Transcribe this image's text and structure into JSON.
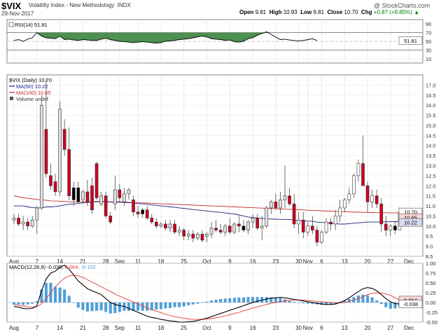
{
  "header": {
    "symbol": "$VIX",
    "name": "Volatility Index - New Methodology",
    "exchange": "INDX",
    "date": "29-Nov-2017",
    "watermark": "@ StockCharts.com",
    "open_label": "Open",
    "open": "9.81",
    "high_label": "High",
    "high": "10.93",
    "low_label": "Low",
    "low": "9.81",
    "close_label": "Close",
    "close": "10.70",
    "chg_label": "Chg",
    "chg": "+0.87 (+8.85%)",
    "chg_arrow": "▲"
  },
  "colors": {
    "up": "#e8e8e8",
    "down": "#cc0022",
    "ma50": "#1a237e",
    "ma100": "#c62828",
    "macd": "#000000",
    "signal": "#e53935",
    "hist": "#4f9fd6",
    "rsi": "#000000",
    "rsi_fill": "#2e7d32"
  },
  "chart_data": [
    {
      "type": "line",
      "panel": "rsi",
      "legend": "RSI(14) 51.81",
      "ylim": [
        0,
        100
      ],
      "yticks": [
        "90",
        "70",
        "50",
        "30",
        "10"
      ],
      "current_label": "51.81",
      "levels": [
        70,
        30
      ],
      "values": [
        52,
        54,
        50,
        55,
        58,
        70,
        62,
        58,
        57,
        56,
        62,
        54,
        55,
        53,
        52,
        54,
        53,
        52,
        52,
        55,
        57,
        54,
        52,
        50,
        49,
        48,
        47,
        48,
        49,
        48,
        47,
        46,
        47,
        50,
        51,
        52,
        54,
        55,
        56,
        58,
        60,
        62,
        60,
        56,
        55,
        54,
        52,
        53,
        49,
        48,
        50,
        56,
        58,
        64,
        68,
        72,
        66,
        60,
        54,
        55,
        53,
        52,
        51,
        52,
        54,
        56,
        51.81
      ]
    },
    {
      "type": "candlestick",
      "panel": "price",
      "title": "$VIX (Daily) 10.70",
      "legend": [
        "MA(50) 10.22",
        "MA(100) 10.65",
        "Volume undef"
      ],
      "ylim": [
        8.5,
        17.5
      ],
      "yticks": [
        "17.0",
        "16.5",
        "16.0",
        "15.5",
        "15.0",
        "14.5",
        "14.0",
        "13.5",
        "13.0",
        "12.5",
        "12.0",
        "11.5",
        "11.0",
        "10.5",
        "10.0",
        "9.5",
        "9.0",
        "8.5"
      ],
      "xlabels": [
        "Aug",
        "7",
        "14",
        "21",
        "28",
        "Sep",
        "11",
        "18",
        "25",
        "Oct",
        "9",
        "16",
        "23",
        "30",
        "Nov",
        "6",
        "13",
        "20",
        "27",
        "Dec"
      ],
      "xlabel_idx": [
        0,
        5,
        10,
        15,
        20,
        23,
        27,
        32,
        37,
        42,
        47,
        52,
        57,
        62,
        64,
        67,
        72,
        77,
        82,
        86
      ],
      "price_tags": [
        "10.70",
        "10.65",
        "10.22"
      ],
      "candles": [
        [
          10.3,
          10.6,
          10.1,
          10.4
        ],
        [
          10.4,
          10.6,
          10.0,
          10.1
        ],
        [
          10.1,
          10.5,
          9.8,
          10.2
        ],
        [
          10.2,
          10.4,
          9.8,
          10.0
        ],
        [
          10.0,
          10.5,
          9.9,
          10.3
        ],
        [
          10.3,
          11.0,
          9.6,
          10.9
        ],
        [
          10.9,
          16.5,
          10.8,
          16.0
        ],
        [
          14.8,
          17.3,
          12.4,
          12.6
        ],
        [
          12.5,
          13.1,
          11.8,
          12.0
        ],
        [
          12.2,
          12.6,
          11.5,
          11.7
        ],
        [
          11.7,
          16.2,
          11.5,
          15.8
        ],
        [
          14.8,
          15.3,
          13.5,
          13.8
        ],
        [
          13.8,
          14.9,
          11.3,
          11.5
        ],
        [
          11.3,
          12.2,
          11.0,
          11.9
        ],
        [
          11.9,
          12.2,
          11.1,
          11.2
        ],
        [
          11.3,
          11.8,
          11.1,
          11.7
        ],
        [
          11.7,
          12.3,
          11.0,
          11.2
        ],
        [
          12.0,
          12.4,
          10.6,
          10.8
        ],
        [
          13.1,
          13.2,
          11.3,
          11.4
        ],
        [
          11.1,
          11.7,
          11.0,
          11.5
        ],
        [
          11.5,
          11.7,
          10.4,
          10.5
        ],
        [
          10.5,
          10.7,
          10.1,
          10.2
        ],
        [
          11.1,
          12.5,
          10.8,
          11.8
        ],
        [
          11.8,
          12.1,
          11.2,
          11.4
        ],
        [
          11.2,
          11.9,
          11.0,
          11.6
        ],
        [
          11.6,
          11.9,
          11.3,
          11.8
        ],
        [
          11.3,
          11.5,
          10.5,
          10.7
        ],
        [
          10.7,
          11.0,
          10.4,
          10.6
        ],
        [
          10.6,
          10.9,
          10.4,
          10.8
        ],
        [
          10.8,
          11.0,
          10.3,
          10.4
        ],
        [
          10.4,
          10.6,
          10.1,
          10.2
        ],
        [
          10.2,
          10.4,
          9.9,
          10.0
        ],
        [
          10.0,
          10.2,
          9.9,
          10.1
        ],
        [
          10.1,
          10.3,
          9.8,
          9.9
        ],
        [
          9.9,
          10.3,
          9.7,
          10.1
        ],
        [
          10.1,
          10.3,
          9.6,
          9.7
        ],
        [
          9.7,
          10.0,
          9.5,
          9.8
        ],
        [
          9.8,
          9.9,
          9.3,
          9.5
        ],
        [
          9.5,
          9.8,
          9.3,
          9.6
        ],
        [
          9.6,
          9.8,
          9.2,
          9.4
        ],
        [
          9.4,
          9.7,
          9.3,
          9.6
        ],
        [
          9.6,
          9.8,
          9.2,
          9.3
        ],
        [
          9.5,
          9.7,
          9.2,
          9.6
        ],
        [
          9.6,
          10.2,
          9.4,
          9.9
        ],
        [
          9.9,
          10.3,
          9.7,
          9.8
        ],
        [
          9.8,
          10.1,
          9.6,
          9.7
        ],
        [
          9.7,
          10.1,
          9.5,
          10.0
        ],
        [
          10.0,
          10.4,
          9.6,
          9.7
        ],
        [
          9.7,
          10.2,
          9.6,
          10.1
        ],
        [
          10.1,
          10.5,
          9.7,
          10.0
        ],
        [
          10.0,
          10.3,
          9.7,
          9.8
        ],
        [
          9.8,
          10.3,
          9.6,
          10.2
        ],
        [
          10.2,
          10.6,
          9.9,
          10.4
        ],
        [
          10.4,
          10.6,
          9.8,
          9.9
        ],
        [
          9.9,
          10.5,
          9.3,
          10.0
        ],
        [
          10.0,
          11.0,
          9.9,
          10.9
        ],
        [
          10.9,
          11.3,
          10.6,
          11.2
        ],
        [
          11.2,
          11.6,
          10.8,
          10.9
        ],
        [
          10.9,
          11.7,
          10.6,
          11.3
        ],
        [
          11.3,
          13.0,
          10.9,
          11.5
        ],
        [
          11.5,
          11.9,
          11.0,
          11.1
        ],
        [
          11.1,
          11.6,
          9.9,
          10.1
        ],
        [
          10.1,
          10.7,
          9.6,
          10.3
        ],
        [
          10.3,
          10.7,
          9.4,
          9.7
        ],
        [
          9.7,
          10.2,
          9.5,
          10.0
        ],
        [
          10.0,
          10.5,
          9.6,
          9.8
        ],
        [
          9.8,
          10.0,
          9.0,
          9.2
        ],
        [
          9.2,
          9.8,
          9.1,
          9.7
        ],
        [
          9.7,
          10.4,
          9.6,
          10.2
        ],
        [
          10.2,
          10.4,
          9.8,
          10.1
        ],
        [
          10.1,
          10.8,
          9.8,
          10.5
        ],
        [
          10.5,
          11.3,
          10.2,
          10.9
        ],
        [
          10.9,
          11.4,
          10.7,
          11.3
        ],
        [
          11.3,
          11.9,
          11.1,
          11.6
        ],
        [
          11.6,
          12.6,
          11.4,
          12.5
        ],
        [
          12.5,
          13.3,
          12.2,
          13.1
        ],
        [
          13.1,
          14.5,
          12.0,
          12.0
        ],
        [
          12.0,
          12.2,
          10.7,
          11.2
        ],
        [
          11.2,
          11.8,
          10.9,
          11.5
        ],
        [
          11.5,
          11.8,
          10.9,
          11.1
        ],
        [
          11.1,
          11.4,
          9.7,
          10.1
        ],
        [
          10.1,
          10.5,
          9.5,
          9.8
        ],
        [
          9.8,
          10.1,
          9.5,
          10.0
        ],
        [
          10.0,
          10.2,
          9.6,
          9.8
        ],
        [
          9.81,
          10.93,
          9.81,
          10.7
        ]
      ],
      "ma50": [
        11.0,
        11.0,
        11.0,
        10.95,
        10.92,
        10.9,
        10.9,
        10.95,
        10.95,
        10.97,
        11.0,
        11.05,
        11.08,
        11.1,
        11.12,
        11.15,
        11.17,
        11.2,
        11.22,
        11.22,
        11.22,
        11.2,
        11.2,
        11.2,
        11.19,
        11.18,
        11.15,
        11.12,
        11.1,
        11.08,
        11.05,
        11.03,
        11.0,
        10.98,
        10.95,
        10.93,
        10.9,
        10.88,
        10.85,
        10.82,
        10.8,
        10.78,
        10.75,
        10.72,
        10.7,
        10.68,
        10.65,
        10.62,
        10.6,
        10.55,
        10.5,
        10.45,
        10.42,
        10.4,
        10.38,
        10.36,
        10.35,
        10.34,
        10.33,
        10.33,
        10.32,
        10.3,
        10.28,
        10.26,
        10.25,
        10.23,
        10.2,
        10.18,
        10.16,
        10.14,
        10.12,
        10.1,
        10.1,
        10.12,
        10.14,
        10.16,
        10.18,
        10.2,
        10.2,
        10.2,
        10.21,
        10.21,
        10.22,
        10.22,
        10.22
      ],
      "ma100": [
        11.5,
        11.45,
        11.4,
        11.38,
        11.35,
        11.32,
        11.3,
        11.28,
        11.25,
        11.24,
        11.23,
        11.22,
        11.2,
        11.2,
        11.2,
        11.2,
        11.2,
        11.2,
        11.2,
        11.2,
        11.2,
        11.19,
        11.18,
        11.18,
        11.17,
        11.16,
        11.15,
        11.15,
        11.15,
        11.14,
        11.13,
        11.12,
        11.1,
        11.1,
        11.09,
        11.08,
        11.07,
        11.06,
        11.05,
        11.04,
        11.03,
        11.02,
        11.01,
        11.0,
        10.99,
        10.98,
        10.97,
        10.96,
        10.95,
        10.94,
        10.93,
        10.92,
        10.91,
        10.9,
        10.89,
        10.88,
        10.87,
        10.86,
        10.85,
        10.84,
        10.83,
        10.82,
        10.81,
        10.8,
        10.79,
        10.78,
        10.77,
        10.76,
        10.75,
        10.74,
        10.73,
        10.72,
        10.71,
        10.7,
        10.69,
        10.69,
        10.68,
        10.68,
        10.67,
        10.67,
        10.66,
        10.66,
        10.65,
        10.65,
        10.65
      ]
    },
    {
      "type": "line",
      "panel": "macd",
      "legend": [
        "MACD(12,26,9)",
        "-0.038",
        "0.064",
        "-0.102"
      ],
      "ylim": [
        -0.5,
        1.0
      ],
      "yticks": [
        "1.00",
        "0.75",
        "0.50",
        "0.25",
        "0.00",
        "-0.25",
        "-0.50"
      ],
      "price_tags": [
        "0.064",
        "-0.038"
      ],
      "macd": [
        -0.1,
        -0.12,
        -0.15,
        -0.16,
        -0.15,
        -0.08,
        0.3,
        0.6,
        0.75,
        0.8,
        0.9,
        0.95,
        0.85,
        0.7,
        0.55,
        0.45,
        0.35,
        0.3,
        0.25,
        0.2,
        0.1,
        0.0,
        -0.05,
        -0.08,
        -0.1,
        -0.15,
        -0.2,
        -0.25,
        -0.3,
        -0.35,
        -0.38,
        -0.4,
        -0.43,
        -0.45,
        -0.47,
        -0.48,
        -0.5,
        -0.5,
        -0.49,
        -0.48,
        -0.46,
        -0.43,
        -0.4,
        -0.36,
        -0.32,
        -0.28,
        -0.24,
        -0.2,
        -0.16,
        -0.12,
        -0.08,
        -0.04,
        0.0,
        0.03,
        0.06,
        0.09,
        0.11,
        0.12,
        0.13,
        0.12,
        0.1,
        0.08,
        0.06,
        0.04,
        0.02,
        0.0,
        -0.02,
        -0.04,
        -0.05,
        -0.05,
        -0.04,
        0.0,
        0.05,
        0.12,
        0.2,
        0.28,
        0.35,
        0.38,
        0.36,
        0.3,
        0.2,
        0.1,
        0.02,
        -0.03,
        -0.038
      ],
      "signal": [
        -0.05,
        -0.07,
        -0.09,
        -0.11,
        -0.12,
        -0.11,
        -0.03,
        0.1,
        0.25,
        0.4,
        0.52,
        0.62,
        0.68,
        0.7,
        0.68,
        0.64,
        0.58,
        0.52,
        0.46,
        0.4,
        0.34,
        0.28,
        0.22,
        0.16,
        0.11,
        0.06,
        0.01,
        -0.04,
        -0.09,
        -0.14,
        -0.18,
        -0.22,
        -0.26,
        -0.3,
        -0.33,
        -0.36,
        -0.38,
        -0.4,
        -0.42,
        -0.43,
        -0.43,
        -0.43,
        -0.42,
        -0.41,
        -0.39,
        -0.37,
        -0.34,
        -0.31,
        -0.28,
        -0.25,
        -0.21,
        -0.18,
        -0.14,
        -0.11,
        -0.08,
        -0.05,
        -0.02,
        0.0,
        0.02,
        0.04,
        0.05,
        0.06,
        0.06,
        0.06,
        0.05,
        0.04,
        0.03,
        0.02,
        0.01,
        0.0,
        -0.01,
        -0.01,
        0.0,
        0.03,
        0.06,
        0.1,
        0.15,
        0.2,
        0.23,
        0.25,
        0.24,
        0.22,
        0.18,
        0.12,
        0.064
      ]
    }
  ]
}
